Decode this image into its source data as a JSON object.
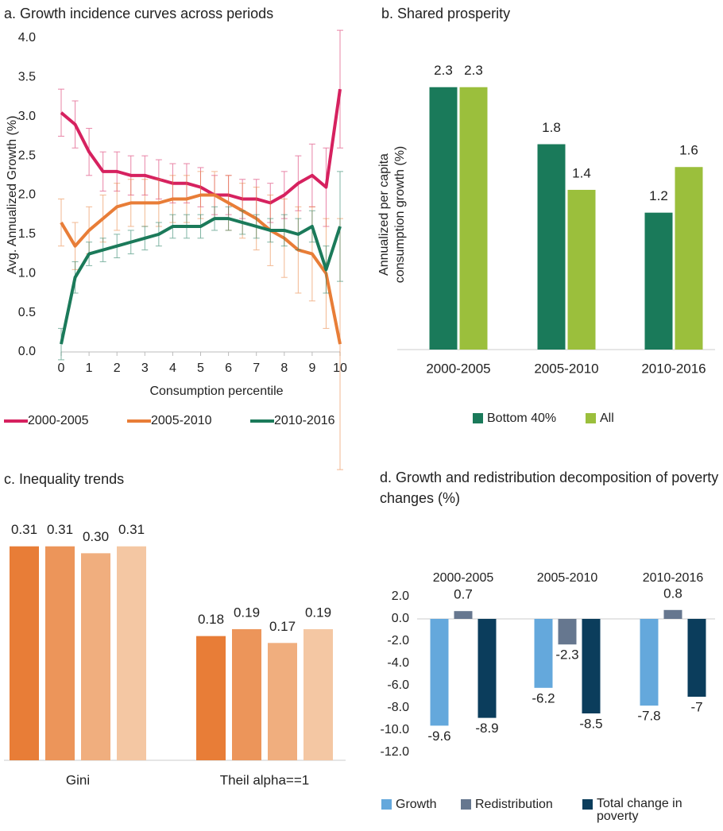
{
  "chart_data": [
    {
      "type": "line",
      "title": "a. Growth incidence curves across periods",
      "x_label": "Consumption percentile",
      "y_label": "Avg. Annualized Growth (%)",
      "x": [
        0,
        0.5,
        1,
        1.5,
        2,
        2.5,
        3,
        3.5,
        4,
        4.5,
        5,
        5.5,
        6,
        6.5,
        7,
        7.5,
        8,
        8.5,
        9,
        9.5,
        10
      ],
      "xlim": [
        0,
        10
      ],
      "xticks": [
        0,
        1,
        2,
        3,
        4,
        5,
        6,
        7,
        8,
        9,
        10
      ],
      "ylim": [
        0,
        4
      ],
      "yticks": [
        {
          "value": 0,
          "label": "0.0"
        },
        0.5,
        {
          "value": 1,
          "label": "1.0"
        },
        1.5,
        {
          "value": 2,
          "label": "2.0"
        },
        2.5,
        {
          "value": 3,
          "label": "3.0"
        },
        3.5,
        {
          "value": 4,
          "label": "4.0"
        }
      ],
      "legend": "bottom",
      "series": [
        {
          "name": "2000-2005",
          "color": "#d6215f",
          "values": [
            3.05,
            2.9,
            2.55,
            2.3,
            2.3,
            2.25,
            2.25,
            2.2,
            2.15,
            2.15,
            2.1,
            2.0,
            2.0,
            1.95,
            1.95,
            1.9,
            2.0,
            2.15,
            2.25,
            2.1,
            3.35
          ],
          "errors": [
            0.3,
            0.3,
            0.3,
            0.25,
            0.25,
            0.25,
            0.25,
            0.25,
            0.25,
            0.25,
            0.25,
            0.25,
            0.25,
            0.25,
            0.25,
            0.25,
            0.3,
            0.35,
            0.4,
            0.5,
            0.75
          ]
        },
        {
          "name": "2005-2010",
          "color": "#e87d37",
          "values": [
            1.65,
            1.35,
            1.55,
            1.7,
            1.85,
            1.9,
            1.9,
            1.9,
            1.95,
            1.95,
            2.0,
            2.0,
            1.9,
            1.8,
            1.7,
            1.55,
            1.45,
            1.3,
            1.25,
            1.0,
            0.1
          ],
          "errors": [
            0.3,
            0.3,
            0.3,
            0.3,
            0.3,
            0.3,
            0.3,
            0.3,
            0.3,
            0.3,
            0.3,
            0.3,
            0.35,
            0.35,
            0.4,
            0.45,
            0.5,
            0.55,
            0.6,
            0.7,
            1.6
          ]
        },
        {
          "name": "2010-2016",
          "color": "#1b7a5a",
          "values": [
            0.1,
            0.95,
            1.25,
            1.3,
            1.35,
            1.4,
            1.45,
            1.5,
            1.6,
            1.6,
            1.6,
            1.7,
            1.7,
            1.65,
            1.6,
            1.55,
            1.55,
            1.5,
            1.6,
            1.05,
            1.6
          ],
          "errors": [
            0.2,
            0.2,
            0.15,
            0.15,
            0.15,
            0.15,
            0.15,
            0.15,
            0.15,
            0.15,
            0.15,
            0.15,
            0.15,
            0.15,
            0.15,
            0.15,
            0.2,
            0.2,
            0.2,
            0.3,
            0.7
          ]
        }
      ]
    },
    {
      "type": "bar",
      "title": "b. Shared prosperity",
      "y_label": [
        "Annualized per capita",
        "consumption growth (%)"
      ],
      "categories": [
        "2000-2005",
        "2005-2010",
        "2010-2016"
      ],
      "ylim": [
        0,
        2.5
      ],
      "legend": "bottom",
      "series": [
        {
          "name": "Bottom 40%",
          "color": "#1a7a5a",
          "values": [
            2.3,
            1.8,
            1.2
          ]
        },
        {
          "name": "All",
          "color": "#9bbf3c",
          "values": [
            2.3,
            1.4,
            1.6
          ]
        }
      ]
    },
    {
      "type": "bar",
      "title": "c. Inequality trends",
      "categories": [
        "Gini",
        "Theil alpha==1"
      ],
      "ylim": [
        0,
        0.32
      ],
      "series": [
        {
          "color": "#e87d37",
          "values": [
            0.31,
            0.18
          ]
        },
        {
          "color": "#ec955a",
          "values": [
            0.31,
            0.19
          ]
        },
        {
          "color": "#f0ae7e",
          "values": [
            0.3,
            0.17
          ],
          "value_labels": [
            "0.30",
            "0.17"
          ]
        },
        {
          "color": "#f4c7a3",
          "values": [
            0.31,
            0.19
          ]
        }
      ]
    },
    {
      "type": "bar",
      "title": "d. Growth and redistribution decomposition of poverty changes (%)",
      "categories": [
        "2000-2005",
        "2005-2010",
        "2010-2016"
      ],
      "ylim": [
        -12,
        2
      ],
      "yticks": [
        {
          "value": 2,
          "label": "2.0"
        },
        {
          "value": 0,
          "label": "0.0"
        },
        {
          "value": -2,
          "label": "-2.0"
        },
        {
          "value": -4,
          "label": "-4.0"
        },
        {
          "value": -6,
          "label": "-6.0"
        },
        {
          "value": -8,
          "label": "-8.0"
        },
        {
          "value": -10,
          "label": "-10.0"
        },
        {
          "value": -12,
          "label": "-12.0"
        }
      ],
      "legend": "bottom",
      "series": [
        {
          "name": "Growth",
          "color": "#64a8dc",
          "values": [
            -9.6,
            -6.2,
            -7.8
          ]
        },
        {
          "name": "Redistribution",
          "color": "#66778f",
          "values": [
            0.7,
            -2.3,
            0.8
          ]
        },
        {
          "name": "Total change in poverty",
          "color": "#0b3d5c",
          "values": [
            -8.9,
            -8.5,
            -7.0
          ]
        }
      ]
    }
  ]
}
